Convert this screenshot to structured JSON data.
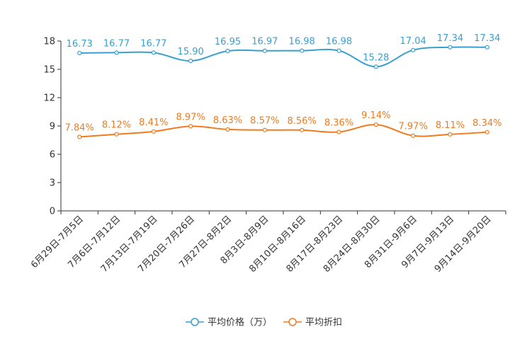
{
  "chart_data": {
    "type": "line",
    "title": "",
    "xlabel": "",
    "ylabel": "",
    "ylim": [
      0,
      18
    ],
    "yticks": [
      0,
      3,
      6,
      9,
      12,
      15,
      18
    ],
    "grid": false,
    "legend_position": "bottom",
    "categories": [
      "6月29日-7月5日",
      "7月6日-7月12日",
      "7月13日-7月19日",
      "7月20日-7月26日",
      "7月27日-8月2日",
      "8月3日-8月9日",
      "8月10日-8月16日",
      "8月17日-8月23日",
      "8月24日-8月30日",
      "8月31日-9月6日",
      "9月7日-9月13日",
      "9月14日-9月20日"
    ],
    "series": [
      {
        "name": "平均价格（万）",
        "color": "#3a9fd0",
        "values": [
          16.73,
          16.77,
          16.77,
          15.9,
          16.95,
          16.97,
          16.98,
          16.98,
          15.28,
          17.04,
          17.34,
          17.34
        ],
        "labels": [
          "16.73",
          "16.77",
          "16.77",
          "15.90",
          "16.95",
          "16.97",
          "16.98",
          "16.98",
          "15.28",
          "17.04",
          "17.34",
          "17.34"
        ]
      },
      {
        "name": "平均折扣",
        "color": "#f07b1e",
        "values": [
          7.84,
          8.12,
          8.41,
          8.97,
          8.63,
          8.57,
          8.56,
          8.36,
          9.14,
          7.97,
          8.11,
          8.34
        ],
        "labels": [
          "7.84%",
          "8.12%",
          "8.41%",
          "8.97%",
          "8.63%",
          "8.57%",
          "8.56%",
          "8.36%",
          "9.14%",
          "7.97%",
          "8.11%",
          "8.34%"
        ]
      }
    ]
  }
}
